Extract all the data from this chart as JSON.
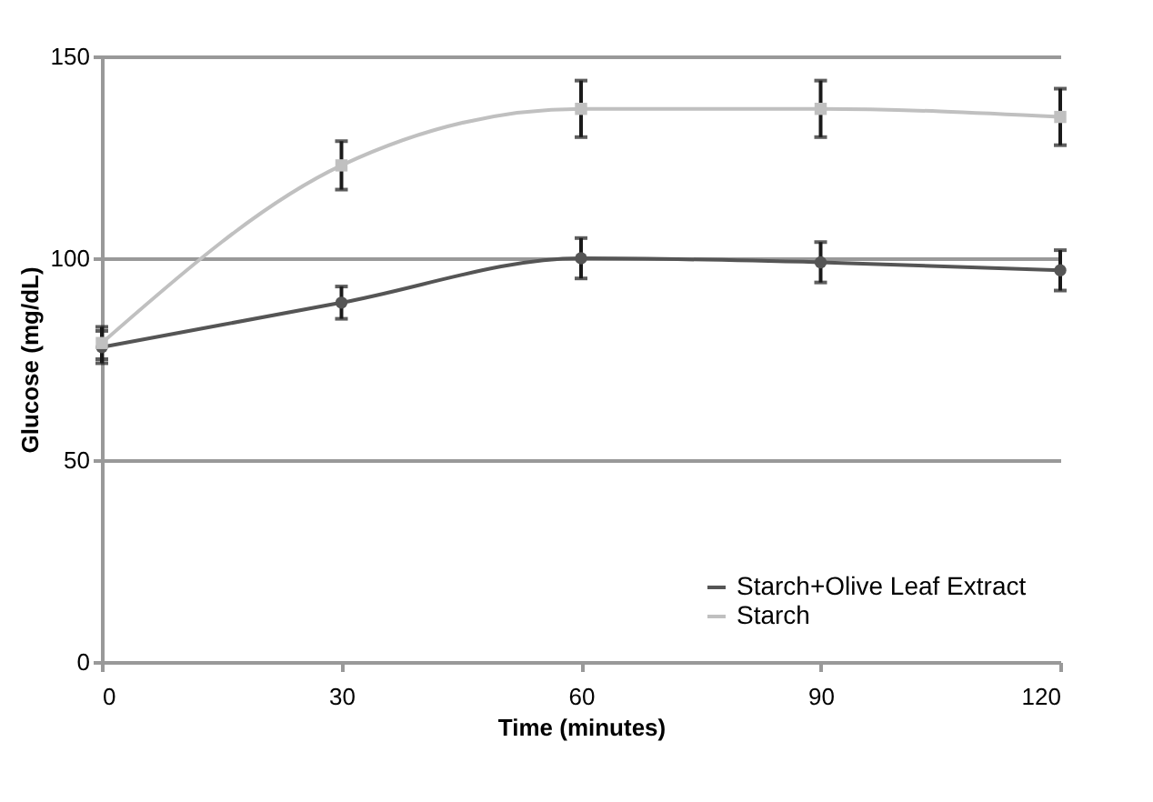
{
  "chart_data": {
    "type": "line",
    "xlabel": "Time (minutes)",
    "ylabel": "Glucose (mg/dL)",
    "x": [
      0,
      30,
      60,
      90,
      120
    ],
    "series": [
      {
        "name": "Starch+Olive Leaf Extract",
        "color": "#555555",
        "marker": "circle",
        "values": [
          78,
          89,
          100,
          99,
          97
        ],
        "errors": [
          4,
          4,
          5,
          5,
          5
        ]
      },
      {
        "name": "Starch",
        "color": "#c0c0c0",
        "marker": "square",
        "values": [
          79,
          123,
          137,
          137,
          135
        ],
        "errors": [
          4,
          6,
          7,
          7,
          7
        ]
      }
    ],
    "xlim": [
      0,
      120
    ],
    "xticks": [
      0,
      30,
      60,
      90,
      120
    ],
    "ylim": [
      0,
      150
    ],
    "yticks": [
      0,
      50,
      100,
      150
    ],
    "grid": "y",
    "legend": "bottom right"
  }
}
